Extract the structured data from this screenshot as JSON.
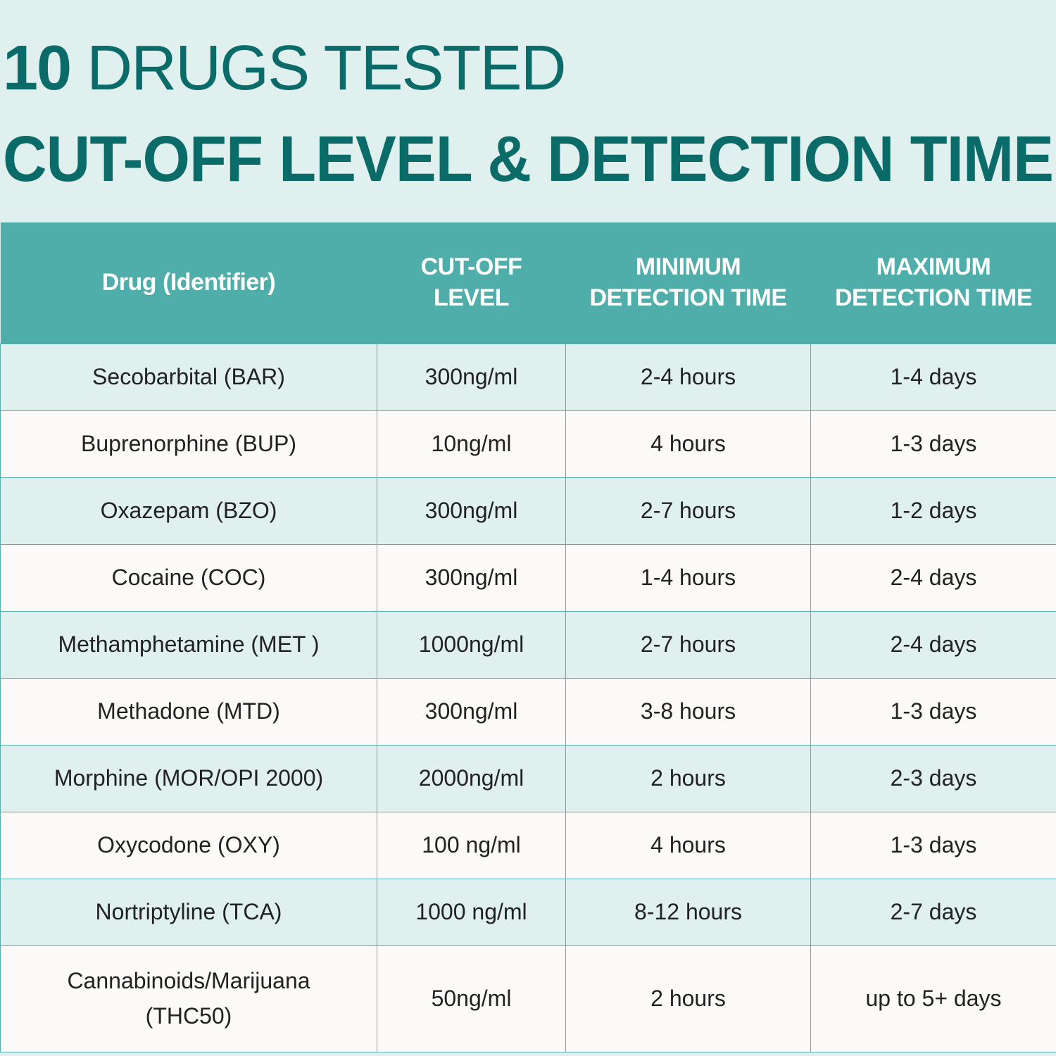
{
  "title": {
    "number": "10",
    "line1_rest": "DRUGS TESTED",
    "line2": "CUT-OFF LEVEL & DETECTION TIME"
  },
  "colors": {
    "background": "#e0f0ef",
    "header": "#4fadaa",
    "title": "#0b6b68",
    "row_alt": "#fbfaf8"
  },
  "table": {
    "headers": [
      {
        "line1": "Drug (Identifier)",
        "line2": ""
      },
      {
        "line1": "CUT-OFF",
        "line2": "LEVEL"
      },
      {
        "line1": "MINIMUM",
        "line2": "DETECTION TIME"
      },
      {
        "line1": "MAXIMUM",
        "line2": "DETECTION TIME"
      }
    ],
    "rows": [
      {
        "drug": "Secobarbital (BAR)",
        "drug2": "",
        "cutoff": "300ng/ml",
        "min": "2-4 hours",
        "max": "1-4 days"
      },
      {
        "drug": "Buprenorphine (BUP)",
        "drug2": "",
        "cutoff": "10ng/ml",
        "min": "4 hours",
        "max": "1-3 days"
      },
      {
        "drug": "Oxazepam (BZO)",
        "drug2": "",
        "cutoff": "300ng/ml",
        "min": "2-7 hours",
        "max": "1-2 days"
      },
      {
        "drug": "Cocaine (COC)",
        "drug2": "",
        "cutoff": "300ng/ml",
        "min": "1-4 hours",
        "max": "2-4 days"
      },
      {
        "drug": "Methamphetamine (MET )",
        "drug2": "",
        "cutoff": "1000ng/ml",
        "min": "2-7 hours",
        "max": "2-4 days"
      },
      {
        "drug": "Methadone (MTD)",
        "drug2": "",
        "cutoff": "300ng/ml",
        "min": "3-8 hours",
        "max": "1-3 days"
      },
      {
        "drug": "Morphine (MOR/OPI 2000)",
        "drug2": "",
        "cutoff": "2000ng/ml",
        "min": "2 hours",
        "max": "2-3 days"
      },
      {
        "drug": "Oxycodone (OXY)",
        "drug2": "",
        "cutoff": "100 ng/ml",
        "min": "4 hours",
        "max": "1-3 days"
      },
      {
        "drug": "Nortriptyline (TCA)",
        "drug2": "",
        "cutoff": "1000 ng/ml",
        "min": "8-12 hours",
        "max": "2-7 days"
      },
      {
        "drug": "Cannabinoids/Marijuana",
        "drug2": "(THC50)",
        "cutoff": "50ng/ml",
        "min": "2 hours",
        "max": "up to 5+ days"
      }
    ]
  }
}
